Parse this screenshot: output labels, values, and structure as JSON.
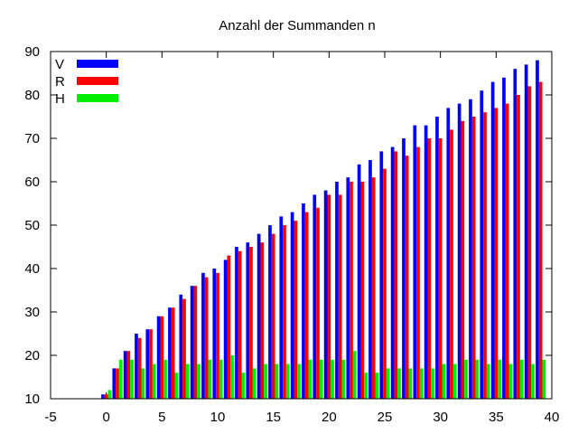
{
  "chart_data": {
    "type": "bar",
    "title": "Anzahl der Summanden n",
    "xlabel": "",
    "ylabel": "",
    "xlim": [
      -5,
      40
    ],
    "ylim": [
      10,
      90
    ],
    "xticks": [
      "-5",
      "0",
      "5",
      "10",
      "15",
      "20",
      "25",
      "30",
      "35",
      "40"
    ],
    "yticks": [
      "10",
      "20",
      "30",
      "40",
      "50",
      "60",
      "70",
      "80",
      "90"
    ],
    "grid": false,
    "legend": "top-left",
    "x": [
      0,
      1,
      2,
      3,
      4,
      5,
      6,
      7,
      8,
      9,
      10,
      11,
      12,
      13,
      14,
      15,
      16,
      17,
      18,
      19,
      20,
      21,
      22,
      23,
      24,
      25,
      26,
      27,
      28,
      29,
      30,
      31,
      32,
      33,
      34,
      35,
      36,
      37,
      38,
      39
    ],
    "series": [
      {
        "name": "V",
        "color": "#0000ff",
        "values": [
          11,
          17,
          21,
          25,
          26,
          29,
          31,
          34,
          36,
          39,
          40,
          42,
          45,
          46,
          48,
          50,
          52,
          53,
          55,
          57,
          58,
          60,
          61,
          64,
          65,
          67,
          68,
          70,
          73,
          73,
          75,
          77,
          78,
          79,
          81,
          83,
          84,
          86,
          87,
          88
        ]
      },
      {
        "name": "R",
        "color": "#ff0000",
        "values": [
          11,
          17,
          21,
          24,
          26,
          29,
          31,
          33,
          36,
          38,
          39,
          43,
          44,
          45,
          46,
          48,
          50,
          51,
          53,
          54,
          57,
          57,
          60,
          60,
          61,
          63,
          67,
          66,
          68,
          70,
          70,
          72,
          74,
          75,
          76,
          77,
          78,
          80,
          82,
          83
        ]
      },
      {
        "name": "H",
        "color": "#00ee00",
        "values": [
          12,
          19,
          19,
          17,
          18,
          19,
          16,
          18,
          18,
          19,
          19,
          20,
          16,
          17,
          18,
          18,
          18,
          18,
          19,
          19,
          19,
          19,
          21,
          16,
          16,
          17,
          17,
          17,
          17,
          17,
          18,
          18,
          19,
          19,
          18,
          19,
          18,
          19,
          18,
          19
        ]
      }
    ]
  }
}
